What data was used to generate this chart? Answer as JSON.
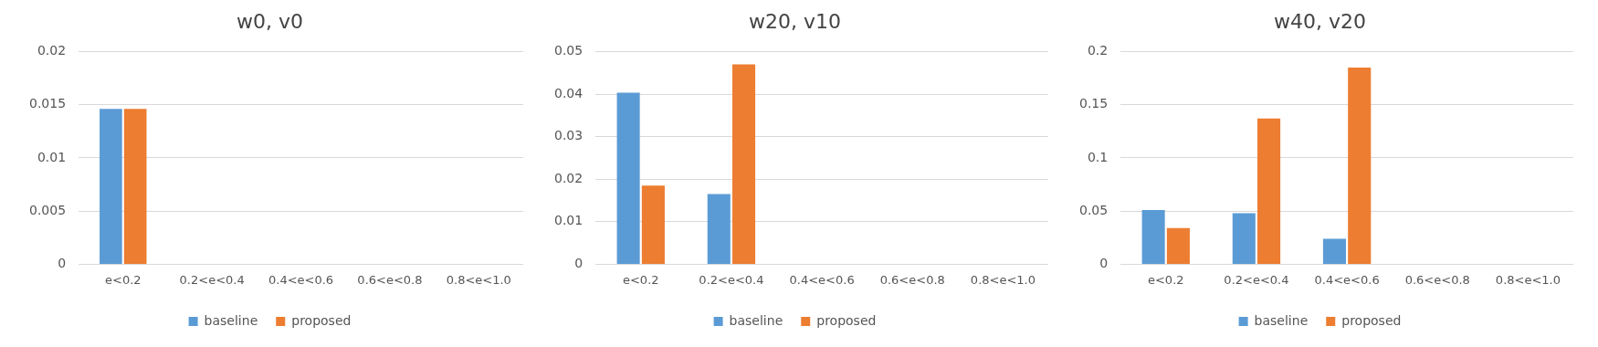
{
  "chart_data": [
    {
      "type": "bar",
      "title": "w0, v0",
      "categories": [
        "e<0.2",
        "0.2<e<0.4",
        "0.4<e<0.6",
        "0.6<e<0.8",
        "0.8<e<1.0"
      ],
      "series": [
        {
          "name": "baseline",
          "color": "#5b9bd5",
          "values": [
            0.0146,
            0,
            0,
            0,
            0
          ]
        },
        {
          "name": "proposed",
          "color": "#ed7d31",
          "values": [
            0.0146,
            0,
            0,
            0,
            0
          ]
        }
      ],
      "ylim": [
        0,
        0.02
      ],
      "yticks": [
        0,
        0.005,
        0.01,
        0.015,
        0.02
      ],
      "grid": "y",
      "legend": "bottom"
    },
    {
      "type": "bar",
      "title": "w20, v10",
      "categories": [
        "e<0.2",
        "0.2<e<0.4",
        "0.4<e<0.6",
        "0.6<e<0.8",
        "0.8<e<1.0"
      ],
      "series": [
        {
          "name": "baseline",
          "color": "#5b9bd5",
          "values": [
            0.0403,
            0.0165,
            0,
            0,
            0
          ]
        },
        {
          "name": "proposed",
          "color": "#ed7d31",
          "values": [
            0.0185,
            0.047,
            0,
            0,
            0
          ]
        }
      ],
      "ylim": [
        0,
        0.05
      ],
      "yticks": [
        0,
        0.01,
        0.02,
        0.03,
        0.04,
        0.05
      ],
      "grid": "y",
      "legend": "bottom"
    },
    {
      "type": "bar",
      "title": "w40, v20",
      "categories": [
        "e<0.2",
        "0.2<e<0.4",
        "0.4<e<0.6",
        "0.6<e<0.8",
        "0.8<e<1.0"
      ],
      "series": [
        {
          "name": "baseline",
          "color": "#5b9bd5",
          "values": [
            0.051,
            0.048,
            0.024,
            0,
            0
          ]
        },
        {
          "name": "proposed",
          "color": "#ed7d31",
          "values": [
            0.034,
            0.137,
            0.185,
            0,
            0
          ]
        }
      ],
      "ylim": [
        0,
        0.2
      ],
      "yticks": [
        0,
        0.05,
        0.1,
        0.15,
        0.2
      ],
      "grid": "y",
      "legend": "bottom"
    }
  ]
}
